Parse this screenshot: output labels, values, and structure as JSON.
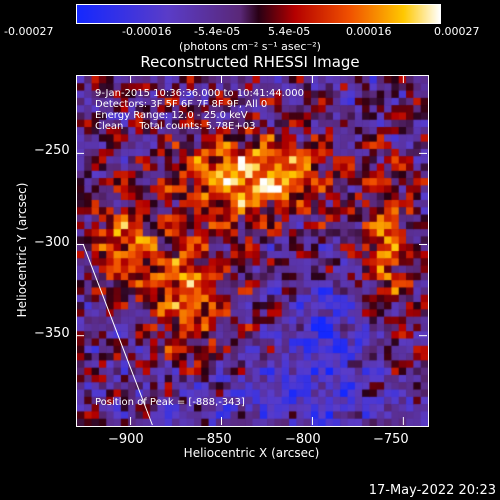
{
  "colorbar": {
    "ticks": [
      "-0.00027",
      "-0.00016",
      "-5.4e-05",
      "5.4e-05",
      "0.00016",
      "0.00027"
    ],
    "units": "(photons cm⁻² s⁻¹ asec⁻²)",
    "range": [
      -0.00027,
      0.00027
    ]
  },
  "info": {
    "time": "9-Jan-2015 10:36:36.000 to 10:41:44.000",
    "detectors": "Detectors: 3F 5F 6F 7F 8F 9F, All 0",
    "energy": "Energy Range: 12.0 - 25.0 keV",
    "clean": "Clean     Total counts: 5.78E+03",
    "peak": "Position of Peak = [-888,-343]"
  },
  "footer": "17-May-2022 20:23",
  "chart_data": {
    "type": "heatmap",
    "title": "Reconstructed RHESSI Image",
    "xlabel": "Heliocentric X (arcsec)",
    "ylabel": "Heliocentric Y (arcsec)",
    "xlim": [
      -930,
      -737
    ],
    "ylim": [
      -399,
      -207
    ],
    "xticks": [
      -900,
      -850,
      -800,
      -750
    ],
    "yticks": [
      -250,
      -300,
      -350
    ],
    "xtick_labels": [
      "−900",
      "−850",
      "−800",
      "−750"
    ],
    "ytick_labels": [
      "−250",
      "−300",
      "−350"
    ],
    "limb_line": [
      [
        -926,
        -300
      ],
      [
        -888,
        -399
      ]
    ],
    "peak": [
      -888,
      -343
    ]
  }
}
